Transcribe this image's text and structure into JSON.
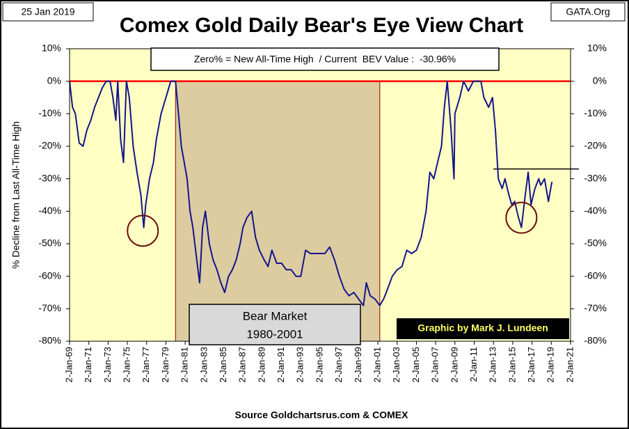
{
  "chart_data": {
    "type": "line",
    "title": "Comex Gold Daily Bear's Eye View Chart",
    "date_stamp": "25 Jan 2019",
    "site": "GATA.Org",
    "ylabel": "% Decline from Last All-Time High",
    "info_box": "Zero% = New All-Time High  / Current  BEV Value :  -30.96%",
    "credit": "Graphic by Mark J. Lundeen",
    "source": "Source Goldchartsrus.com & COMEX",
    "color": "#14148c",
    "background": "#ffffc4",
    "bear_market": {
      "lines": [
        "Bear Market",
        "1980-2001"
      ],
      "xrange": [
        1980.0,
        2001.2
      ],
      "color": "#dccca0"
    },
    "zero_line": {
      "value": 0,
      "color": "#ff0000"
    },
    "reference_line": {
      "value": -27,
      "xrange": [
        2013.0,
        2021.0
      ]
    },
    "highlights": [
      {
        "x": 1976.6,
        "y": -46
      },
      {
        "x": 2015.9,
        "y": -42
      }
    ],
    "x": [
      1969.0,
      1969.3,
      1969.6,
      1970.0,
      1970.4,
      1970.8,
      1971.2,
      1971.6,
      1972.0,
      1972.4,
      1972.8,
      1973.2,
      1973.5,
      1973.8,
      1974.0,
      1974.3,
      1974.6,
      1974.9,
      1975.2,
      1975.6,
      1976.0,
      1976.4,
      1976.7,
      1976.9,
      1977.3,
      1977.7,
      1978.0,
      1978.5,
      1979.0,
      1979.5,
      1980.0,
      1980.3,
      1980.6,
      1980.9,
      1981.2,
      1981.5,
      1981.8,
      1982.2,
      1982.5,
      1982.8,
      1983.1,
      1983.5,
      1983.9,
      1984.3,
      1984.7,
      1985.1,
      1985.5,
      1985.9,
      1986.3,
      1986.7,
      1987.0,
      1987.4,
      1987.9,
      1988.3,
      1988.7,
      1989.2,
      1989.6,
      1990.0,
      1990.5,
      1991.0,
      1991.5,
      1992.0,
      1992.5,
      1993.0,
      1993.5,
      1994.0,
      1994.5,
      1995.0,
      1995.5,
      1996.0,
      1996.5,
      1997.0,
      1997.5,
      1998.0,
      1998.5,
      1999.0,
      1999.5,
      1999.8,
      2000.2,
      2000.7,
      2001.2,
      2001.6,
      2002.0,
      2002.5,
      2003.0,
      2003.5,
      2004.0,
      2004.5,
      2005.0,
      2005.5,
      2006.0,
      2006.4,
      2006.8,
      2007.2,
      2007.6,
      2007.9,
      2008.2,
      2008.6,
      2008.9,
      2009.0,
      2009.5,
      2009.9,
      2010.4,
      2010.9,
      2011.3,
      2011.7,
      2012.0,
      2012.5,
      2012.9,
      2013.2,
      2013.5,
      2013.9,
      2014.2,
      2014.6,
      2014.9,
      2015.2,
      2015.6,
      2015.9,
      2016.3,
      2016.6,
      2016.9,
      2017.3,
      2017.7,
      2017.9,
      2018.3,
      2018.7,
      2019.0,
      2019.07
    ],
    "values": [
      0,
      -8,
      -10,
      -19,
      -20,
      -15,
      -12,
      -8,
      -5,
      -2,
      0,
      0,
      -5,
      -12,
      0,
      -18,
      -25,
      0,
      -5,
      -20,
      -28,
      -35,
      -45,
      -38,
      -30,
      -25,
      -18,
      -10,
      -5,
      0,
      0,
      -10,
      -20,
      -25,
      -30,
      -40,
      -45,
      -55,
      -62,
      -45,
      -40,
      -50,
      -55,
      -58,
      -62,
      -65,
      -60,
      -58,
      -55,
      -50,
      -45,
      -42,
      -40,
      -48,
      -52,
      -55,
      -57,
      -52,
      -56,
      -56,
      -58,
      -58,
      -60,
      -60,
      -52,
      -53,
      -53,
      -53,
      -53,
      -51,
      -55,
      -60,
      -64,
      -66,
      -65,
      -67,
      -69,
      -62,
      -66,
      -67,
      -69,
      -67,
      -64,
      -60,
      -58,
      -57,
      -52,
      -53,
      -52,
      -48,
      -40,
      -28,
      -30,
      -25,
      -20,
      -8,
      0,
      -15,
      -30,
      -10,
      -5,
      0,
      -3,
      0,
      0,
      0,
      -5,
      -8,
      -5,
      -15,
      -30,
      -33,
      -30,
      -35,
      -38,
      -37,
      -42,
      -45,
      -35,
      -28,
      -38,
      -33,
      -30,
      -32,
      -30,
      -37,
      -32,
      -30.96
    ],
    "xlim": [
      1969.0,
      2021.0
    ],
    "xticks": [
      {
        "value": 1969,
        "label": "2-Jan-69"
      },
      {
        "value": 1971,
        "label": "2-Jan-71"
      },
      {
        "value": 1973,
        "label": "2-Jan-73"
      },
      {
        "value": 1975,
        "label": "2-Jan-75"
      },
      {
        "value": 1977,
        "label": "2-Jan-77"
      },
      {
        "value": 1979,
        "label": "2-Jan-79"
      },
      {
        "value": 1981,
        "label": "2-Jan-81"
      },
      {
        "value": 1983,
        "label": "2-Jan-83"
      },
      {
        "value": 1985,
        "label": "2-Jan-85"
      },
      {
        "value": 1987,
        "label": "2-Jan-87"
      },
      {
        "value": 1989,
        "label": "2-Jan-89"
      },
      {
        "value": 1991,
        "label": "2-Jan-91"
      },
      {
        "value": 1993,
        "label": "2-Jan-93"
      },
      {
        "value": 1995,
        "label": "2-Jan-95"
      },
      {
        "value": 1997,
        "label": "2-Jan-97"
      },
      {
        "value": 1999,
        "label": "2-Jan-99"
      },
      {
        "value": 2001,
        "label": "2-Jan-01"
      },
      {
        "value": 2003,
        "label": "2-Jan-03"
      },
      {
        "value": 2005,
        "label": "2-Jan-05"
      },
      {
        "value": 2007,
        "label": "2-Jan-07"
      },
      {
        "value": 2009,
        "label": "2-Jan-09"
      },
      {
        "value": 2011,
        "label": "2-Jan-11"
      },
      {
        "value": 2013,
        "label": "2-Jan-13"
      },
      {
        "value": 2015,
        "label": "2-Jan-15"
      },
      {
        "value": 2017,
        "label": "2-Jan-17"
      },
      {
        "value": 2019,
        "label": "2-Jan-19"
      },
      {
        "value": 2021,
        "label": "2-Jan-21"
      }
    ],
    "ylim": [
      -80,
      10
    ],
    "yticks": [
      {
        "value": 10,
        "label": "10%"
      },
      {
        "value": 0,
        "label": "0%"
      },
      {
        "value": -10,
        "label": "-10%"
      },
      {
        "value": -20,
        "label": "-20%"
      },
      {
        "value": -30,
        "label": "-30%"
      },
      {
        "value": -40,
        "label": "-40%"
      },
      {
        "value": -50,
        "label": "-50%"
      },
      {
        "value": -60,
        "label": "-60%"
      },
      {
        "value": -70,
        "label": "-70%"
      },
      {
        "value": -80,
        "label": "-80%"
      }
    ]
  }
}
